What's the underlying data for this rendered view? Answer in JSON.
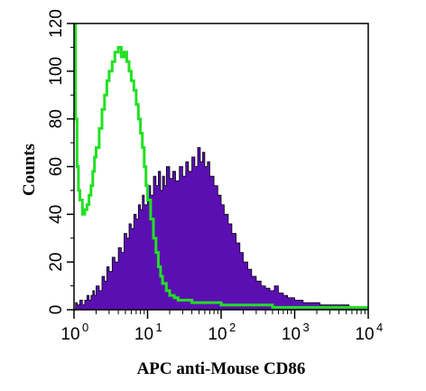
{
  "chart_data": {
    "type": "area",
    "title": "",
    "xlabel": "APC anti-Mouse CD86",
    "ylabel": "Counts",
    "x_scale": "log",
    "xlim": [
      1,
      10000
    ],
    "ylim": [
      0,
      120
    ],
    "x_ticks": [
      {
        "value": 1,
        "base": "10",
        "exp": "0"
      },
      {
        "value": 10,
        "base": "10",
        "exp": "1"
      },
      {
        "value": 100,
        "base": "10",
        "exp": "2"
      },
      {
        "value": 1000,
        "base": "10",
        "exp": "3"
      },
      {
        "value": 10000,
        "base": "10",
        "exp": "4"
      }
    ],
    "y_ticks": [
      "0",
      "20",
      "40",
      "60",
      "80",
      "100",
      "120"
    ],
    "grid": false,
    "legend": "none",
    "series": [
      {
        "style": "filled",
        "color": "#5b0fb3",
        "points": [
          [
            1.0,
            0
          ],
          [
            1.05,
            3
          ],
          [
            1.1,
            2
          ],
          [
            1.2,
            4
          ],
          [
            1.3,
            2
          ],
          [
            1.4,
            4
          ],
          [
            1.5,
            6
          ],
          [
            1.6,
            4
          ],
          [
            1.7,
            6
          ],
          [
            1.8,
            8
          ],
          [
            1.9,
            6
          ],
          [
            2.0,
            10
          ],
          [
            2.2,
            8
          ],
          [
            2.4,
            14
          ],
          [
            2.6,
            12
          ],
          [
            2.8,
            18
          ],
          [
            3.0,
            16
          ],
          [
            3.3,
            22
          ],
          [
            3.6,
            20
          ],
          [
            4.0,
            26
          ],
          [
            4.4,
            24
          ],
          [
            4.8,
            32
          ],
          [
            5.2,
            30
          ],
          [
            5.6,
            36
          ],
          [
            6.0,
            34
          ],
          [
            6.5,
            40
          ],
          [
            7.0,
            38
          ],
          [
            7.5,
            44
          ],
          [
            8.0,
            42
          ],
          [
            8.5,
            48
          ],
          [
            9.0,
            44
          ],
          [
            10,
            52
          ],
          [
            11,
            48
          ],
          [
            12,
            56
          ],
          [
            13,
            52
          ],
          [
            14,
            58
          ],
          [
            15,
            50
          ],
          [
            16,
            56
          ],
          [
            17,
            52
          ],
          [
            18,
            60
          ],
          [
            20,
            55
          ],
          [
            22,
            58
          ],
          [
            24,
            54
          ],
          [
            27,
            60
          ],
          [
            30,
            56
          ],
          [
            33,
            62
          ],
          [
            36,
            58
          ],
          [
            40,
            64
          ],
          [
            44,
            60
          ],
          [
            48,
            68
          ],
          [
            52,
            62
          ],
          [
            56,
            66
          ],
          [
            60,
            60
          ],
          [
            65,
            62
          ],
          [
            70,
            56
          ],
          [
            80,
            52
          ],
          [
            90,
            48
          ],
          [
            100,
            44
          ],
          [
            110,
            40
          ],
          [
            125,
            36
          ],
          [
            140,
            32
          ],
          [
            160,
            28
          ],
          [
            180,
            24
          ],
          [
            200,
            20
          ],
          [
            230,
            17
          ],
          [
            260,
            14
          ],
          [
            300,
            12
          ],
          [
            350,
            10
          ],
          [
            400,
            9
          ],
          [
            460,
            8
          ],
          [
            530,
            10
          ],
          [
            600,
            7
          ],
          [
            700,
            6
          ],
          [
            800,
            5
          ],
          [
            1000,
            4
          ],
          [
            1300,
            3
          ],
          [
            1700,
            3
          ],
          [
            2200,
            2
          ],
          [
            3000,
            2
          ],
          [
            4000,
            2
          ],
          [
            5500,
            1
          ],
          [
            7000,
            1
          ],
          [
            10000,
            0
          ]
        ]
      },
      {
        "style": "line",
        "color": "#22e022",
        "points": [
          [
            1.0,
            120
          ],
          [
            1.05,
            80
          ],
          [
            1.1,
            60
          ],
          [
            1.15,
            50
          ],
          [
            1.2,
            46
          ],
          [
            1.3,
            40
          ],
          [
            1.4,
            42
          ],
          [
            1.5,
            44
          ],
          [
            1.6,
            48
          ],
          [
            1.7,
            52
          ],
          [
            1.8,
            58
          ],
          [
            1.9,
            64
          ],
          [
            2.0,
            68
          ],
          [
            2.2,
            76
          ],
          [
            2.4,
            84
          ],
          [
            2.6,
            90
          ],
          [
            2.8,
            96
          ],
          [
            3.0,
            100
          ],
          [
            3.3,
            104
          ],
          [
            3.6,
            108
          ],
          [
            4.0,
            110
          ],
          [
            4.4,
            106
          ],
          [
            4.8,
            108
          ],
          [
            5.2,
            104
          ],
          [
            5.6,
            100
          ],
          [
            6.0,
            96
          ],
          [
            6.5,
            92
          ],
          [
            7.0,
            86
          ],
          [
            7.5,
            80
          ],
          [
            8.0,
            74
          ],
          [
            8.5,
            68
          ],
          [
            9.0,
            60
          ],
          [
            9.5,
            52
          ],
          [
            10,
            46
          ],
          [
            11,
            38
          ],
          [
            12,
            30
          ],
          [
            13,
            24
          ],
          [
            14,
            18
          ],
          [
            15,
            14
          ],
          [
            16,
            11
          ],
          [
            18,
            8
          ],
          [
            20,
            6
          ],
          [
            23,
            5
          ],
          [
            26,
            4
          ],
          [
            30,
            4
          ],
          [
            40,
            3
          ],
          [
            60,
            3
          ],
          [
            100,
            2
          ],
          [
            200,
            2
          ],
          [
            500,
            1
          ],
          [
            1000,
            1
          ],
          [
            3000,
            1
          ],
          [
            10000,
            0
          ]
        ]
      }
    ]
  }
}
